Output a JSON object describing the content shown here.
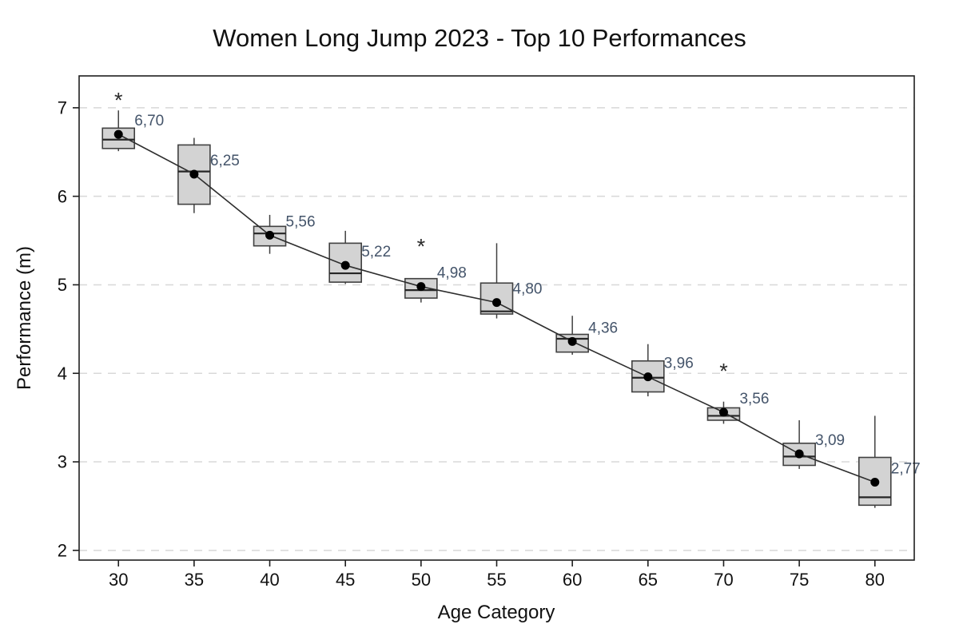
{
  "page": {
    "background": "#ffffff"
  },
  "chart_data": {
    "type": "boxplot",
    "title": "Women Long Jump 2023 - Top 10 Performances",
    "xlabel": "Age Category",
    "ylabel": "Performance (m)",
    "decimal_separator": ",",
    "grid": "horizontal-dashed",
    "legend": "none",
    "xlim": [
      27.4,
      82.6
    ],
    "ylim": [
      1.89,
      7.36
    ],
    "yticks": [
      2,
      3,
      4,
      5,
      6,
      7
    ],
    "y_tick_labels": [
      "2",
      "3",
      "4",
      "5",
      "6",
      "7"
    ],
    "categories": [
      30,
      35,
      40,
      45,
      50,
      55,
      60,
      65,
      70,
      75,
      80
    ],
    "x_tick_labels": [
      "30",
      "35",
      "40",
      "45",
      "50",
      "55",
      "60",
      "65",
      "70",
      "75",
      "80"
    ],
    "outlier_marker": "*",
    "series": [
      {
        "age": 30,
        "whisker_low": 6.51,
        "q1": 6.54,
        "median": 6.64,
        "q3": 6.77,
        "whisker_high": 6.97,
        "mean": 6.7,
        "mean_label": "6,70",
        "outliers": [
          7.12
        ]
      },
      {
        "age": 35,
        "whisker_low": 5.81,
        "q1": 5.91,
        "median": 6.28,
        "q3": 6.58,
        "whisker_high": 6.66,
        "mean": 6.25,
        "mean_label": "6,25",
        "outliers": []
      },
      {
        "age": 40,
        "whisker_low": 5.35,
        "q1": 5.44,
        "median": 5.58,
        "q3": 5.66,
        "whisker_high": 5.79,
        "mean": 5.56,
        "mean_label": "5,56",
        "outliers": []
      },
      {
        "age": 45,
        "whisker_low": 5.01,
        "q1": 5.03,
        "median": 5.13,
        "q3": 5.47,
        "whisker_high": 5.61,
        "mean": 5.22,
        "mean_label": "5,22",
        "outliers": []
      },
      {
        "age": 50,
        "whisker_low": 4.8,
        "q1": 4.85,
        "median": 4.94,
        "q3": 5.07,
        "whisker_high": 5.07,
        "mean": 4.98,
        "mean_label": "4,98",
        "outliers": [
          5.47
        ]
      },
      {
        "age": 55,
        "whisker_low": 4.62,
        "q1": 4.67,
        "median": 4.7,
        "q3": 5.02,
        "whisker_high": 5.47,
        "mean": 4.8,
        "mean_label": "4,80",
        "outliers": []
      },
      {
        "age": 60,
        "whisker_low": 4.21,
        "q1": 4.24,
        "median": 4.39,
        "q3": 4.44,
        "whisker_high": 4.65,
        "mean": 4.36,
        "mean_label": "4,36",
        "outliers": []
      },
      {
        "age": 65,
        "whisker_low": 3.74,
        "q1": 3.79,
        "median": 3.95,
        "q3": 4.14,
        "whisker_high": 4.33,
        "mean": 3.96,
        "mean_label": "3,96",
        "outliers": []
      },
      {
        "age": 70,
        "whisker_low": 3.43,
        "q1": 3.47,
        "median": 3.52,
        "q3": 3.61,
        "whisker_high": 3.68,
        "mean": 3.56,
        "mean_label": "3,56",
        "outliers": [
          4.06
        ]
      },
      {
        "age": 75,
        "whisker_low": 2.92,
        "q1": 2.96,
        "median": 3.06,
        "q3": 3.21,
        "whisker_high": 3.47,
        "mean": 3.09,
        "mean_label": "3,09",
        "outliers": []
      },
      {
        "age": 80,
        "whisker_low": 2.48,
        "q1": 2.51,
        "median": 2.6,
        "q3": 3.05,
        "whisker_high": 3.52,
        "mean": 2.77,
        "mean_label": "2,77",
        "outliers": []
      }
    ],
    "colors": {
      "box_fill": "#d3d3d3",
      "box_border": "#404040",
      "median_line": "#262626",
      "whisker": "#404040",
      "mean_dot": "#000000",
      "trend_line": "#2e2e2e",
      "grid_line": "#d8d8d8",
      "plot_border": "#1f1f1f",
      "tick_label": "#111111",
      "value_label": "#44546a",
      "outlier": "#2b2b2b",
      "background": "#ffffff"
    }
  }
}
